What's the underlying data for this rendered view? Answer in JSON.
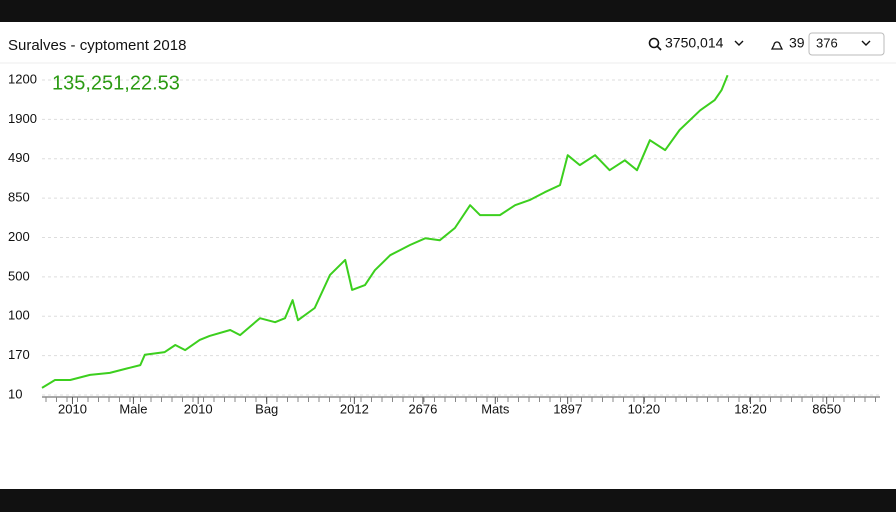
{
  "header": {
    "title": "Suralves - cyptoment 2018",
    "search": "3750,014",
    "count": "39",
    "input": "376"
  },
  "chart_data": {
    "type": "line",
    "annotation": "135,251,22.53",
    "xlim": [
      0,
      11
    ],
    "xticks": [
      {
        "value": 0.4,
        "label": "2010"
      },
      {
        "value": 1.2,
        "label": "Male"
      },
      {
        "value": 2.05,
        "label": "2010"
      },
      {
        "value": 2.95,
        "label": "Bag"
      },
      {
        "value": 4.1,
        "label": "2012"
      },
      {
        "value": 5.0,
        "label": "2676"
      },
      {
        "value": 5.95,
        "label": "Mats"
      },
      {
        "value": 6.9,
        "label": "1897"
      },
      {
        "value": 7.9,
        "label": "10:20"
      },
      {
        "value": 9.3,
        "label": "18:20"
      },
      {
        "value": 10.3,
        "label": "8650"
      }
    ],
    "ylim": [
      0,
      8
    ],
    "yticks": [
      {
        "value": 8,
        "label": "1200"
      },
      {
        "value": 7,
        "label": "1900"
      },
      {
        "value": 6,
        "label": "490"
      },
      {
        "value": 5,
        "label": "850"
      },
      {
        "value": 4,
        "label": "200"
      },
      {
        "value": 3,
        "label": "500"
      },
      {
        "value": 2,
        "label": "100"
      },
      {
        "value": 1,
        "label": "170"
      },
      {
        "value": 0,
        "label": "10"
      }
    ],
    "grid": true,
    "series": [
      {
        "color": "#3ccf1e",
        "x": [
          0,
          0.17,
          0.37,
          0.63,
          0.89,
          1.15,
          1.29,
          1.35,
          1.61,
          1.75,
          1.88,
          2.07,
          2.2,
          2.47,
          2.6,
          2.86,
          3.06,
          3.19,
          3.29,
          3.36,
          3.58,
          3.78,
          3.98,
          4.07,
          4.24,
          4.37,
          4.57,
          4.7,
          4.83,
          5.03,
          5.22,
          5.42,
          5.62,
          5.75,
          6.01,
          6.21,
          6.4,
          6.6,
          6.8,
          6.9,
          7.06,
          7.26,
          7.45,
          7.65,
          7.81,
          7.98,
          8.18,
          8.37,
          8.64,
          8.83,
          8.92,
          9.0
        ],
        "values": [
          0.18,
          0.38,
          0.38,
          0.51,
          0.56,
          0.69,
          0.76,
          1.02,
          1.09,
          1.27,
          1.14,
          1.4,
          1.5,
          1.65,
          1.52,
          1.95,
          1.85,
          1.95,
          2.41,
          1.9,
          2.21,
          3.05,
          3.43,
          2.67,
          2.79,
          3.17,
          3.55,
          3.68,
          3.81,
          3.98,
          3.93,
          4.24,
          4.82,
          4.57,
          4.57,
          4.82,
          4.95,
          5.15,
          5.33,
          6.09,
          5.84,
          6.09,
          5.71,
          5.96,
          5.71,
          6.47,
          6.22,
          6.73,
          7.23,
          7.49,
          7.74,
          8.12
        ]
      }
    ]
  }
}
